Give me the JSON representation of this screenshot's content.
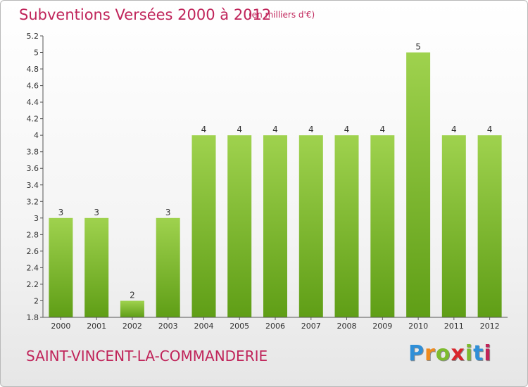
{
  "header": {
    "title": "Subventions Versées 2000 à 2012",
    "unit": "(en milliers d'€)"
  },
  "footer": {
    "commune": "SAINT-VINCENT-LA-COMMANDERIE",
    "logo_text": "Proxiti",
    "logo_colors": [
      "#2f8fd8",
      "#f08a1c",
      "#7dbb2e",
      "#d9262c",
      "#7dbb2e",
      "#2f8fd8",
      "#c0245a"
    ]
  },
  "chart_data": {
    "type": "bar",
    "title": "Subventions Versées 2000 à 2012",
    "subtitle": "(en milliers d'€)",
    "xlabel": "",
    "ylabel": "",
    "categories": [
      "2000",
      "2001",
      "2002",
      "2003",
      "2004",
      "2005",
      "2006",
      "2007",
      "2008",
      "2009",
      "2010",
      "2011",
      "2012"
    ],
    "bar_heights": [
      3.0,
      3.0,
      2.0,
      3.0,
      4.0,
      4.0,
      4.0,
      4.0,
      4.0,
      4.0,
      5.0,
      4.0,
      4.0
    ],
    "data_labels": [
      "3",
      "3",
      "2",
      "3",
      "4",
      "4",
      "4",
      "4",
      "4",
      "4",
      "5",
      "4",
      "4"
    ],
    "y_ticks": [
      "1.8",
      "2",
      "2.2",
      "2.4",
      "2.6",
      "2.8",
      "3",
      "3.2",
      "3.4",
      "3.6",
      "3.8",
      "4",
      "4.2",
      "4.4",
      "4.6",
      "4.8",
      "5",
      "5.2"
    ],
    "ylim": [
      1.8,
      5.2
    ],
    "grid": false,
    "bar_color": "#7db532"
  }
}
